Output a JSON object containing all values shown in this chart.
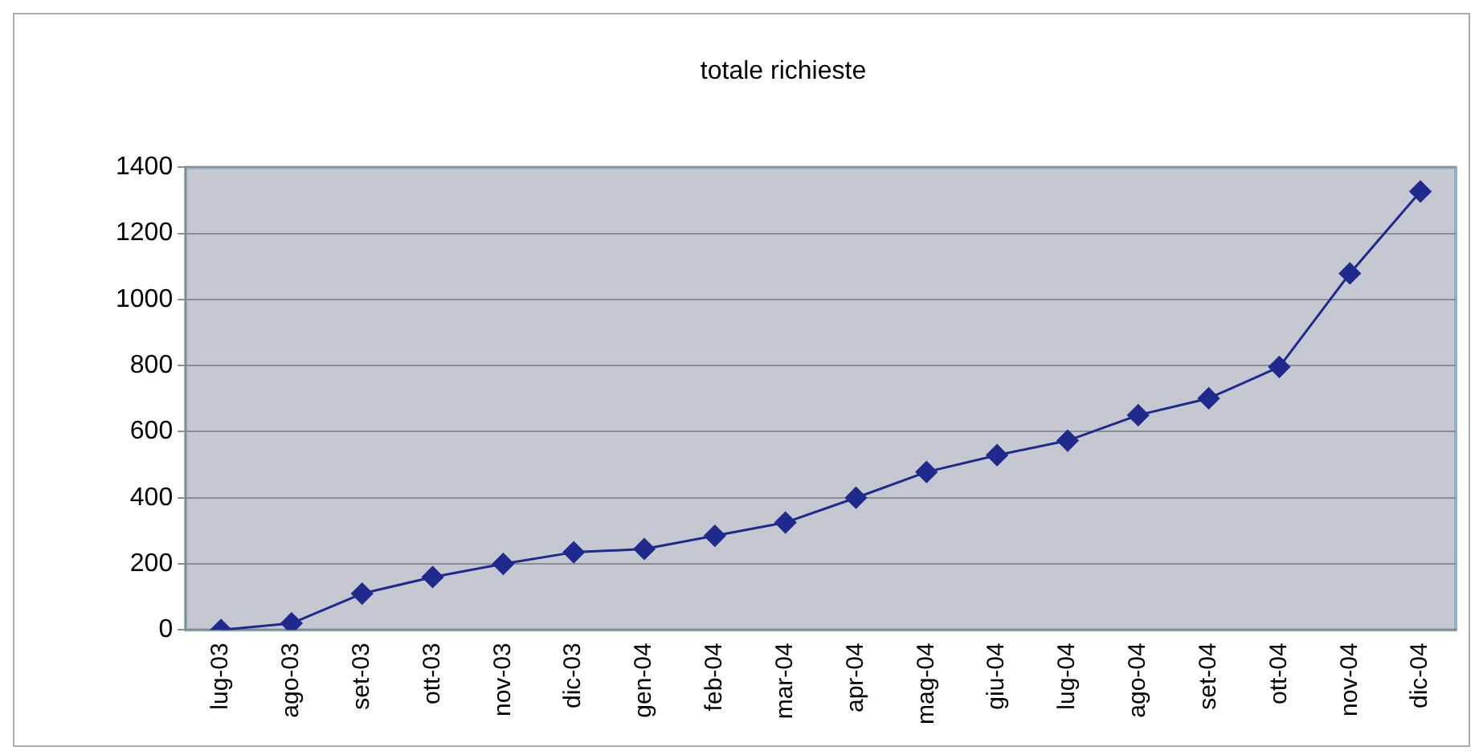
{
  "chart_data": {
    "type": "line",
    "title": "totale richieste",
    "categories": [
      "lug-03",
      "ago-03",
      "set-03",
      "ott-03",
      "nov-03",
      "dic-03",
      "gen-04",
      "feb-04",
      "mar-04",
      "apr-04",
      "mag-04",
      "giu-04",
      "lug-04",
      "ago-04",
      "set-04",
      "ott-04",
      "nov-04",
      "dic-04"
    ],
    "series": [
      {
        "color": "#1f2a8c",
        "values": [
          0,
          20,
          110,
          160,
          200,
          235,
          245,
          285,
          325,
          400,
          478,
          529,
          573,
          650,
          701,
          796,
          1079,
          1327
        ]
      }
    ],
    "ylim": [
      0,
      1400
    ],
    "yticks": [
      0,
      200,
      400,
      600,
      800,
      1000,
      1200,
      1400
    ],
    "grid": "y",
    "legend": false,
    "marker": "diamond",
    "line_style": "solid"
  }
}
